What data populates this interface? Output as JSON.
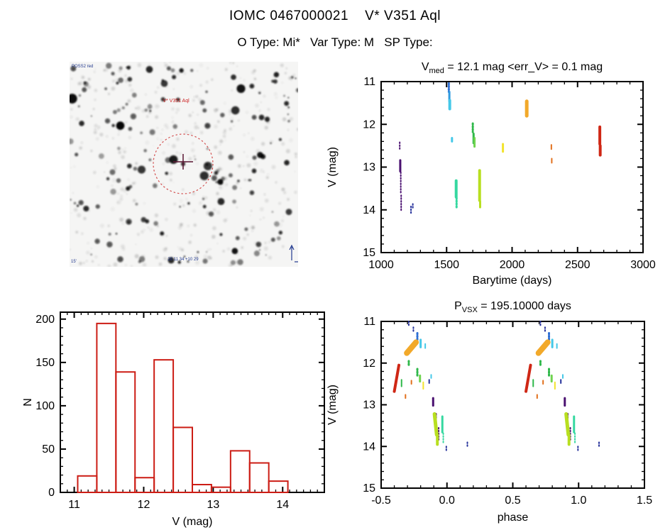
{
  "header": {
    "title": "IOMC 0467000021    V* V351 Aql",
    "subtitle": "O Type: Mi*   Var Type: M   SP Type:"
  },
  "finder": {
    "target_label": "V* V351 Aql",
    "survey_label": "POSS2 red",
    "coords_label": "20 11 34 +10 29",
    "scale_label": "15'"
  },
  "colors": {
    "axis": "#000000",
    "histogram": "#cc1d15",
    "finder_circle": "#cc3333",
    "finder_annotation": "#223a8f"
  },
  "chart_data": [
    {
      "id": "lightcurve",
      "type": "scatter",
      "title": {
        "main": "V",
        "sub": "med",
        "rest": " = 12.1 mag <err_V> = 0.1 mag"
      },
      "xlabel": "Barytime (days)",
      "ylabel": "V (mag)",
      "xlim": [
        1000,
        3000
      ],
      "ylim": [
        11,
        15
      ],
      "y_inverted": true,
      "xticks": [
        1000,
        1500,
        2000,
        2500,
        3000
      ],
      "xtick_labels": [
        "1000",
        "1500",
        "2000",
        "2500",
        "3000"
      ],
      "yticks": [
        11,
        12,
        13,
        14,
        15
      ],
      "ytick_labels": [
        "11",
        "12",
        "13",
        "14",
        "15"
      ],
      "xminor": 100,
      "yminor": 0.2,
      "repeat_offsets": [
        0
      ],
      "segments": [
        [
          1142,
          12.42,
          1142,
          12.58,
          "#4a1070",
          2,
          1
        ],
        [
          1146,
          12.84,
          1146,
          13.1,
          "#4a1070",
          3,
          0
        ],
        [
          1150,
          13.12,
          1150,
          13.62,
          "#4a1070",
          2,
          1
        ],
        [
          1153,
          13.66,
          1153,
          14.04,
          "#4a1070",
          2,
          1
        ],
        [
          1228,
          13.92,
          1228,
          14.08,
          "#24309a",
          2,
          1
        ],
        [
          1242,
          13.86,
          1242,
          13.96,
          "#24309a",
          2,
          1
        ],
        [
          1517,
          11.04,
          1517,
          11.24,
          "#2e6fd4",
          3,
          1
        ],
        [
          1521,
          11.24,
          1521,
          11.46,
          "#2f9ae0",
          3,
          0
        ],
        [
          1524,
          11.44,
          1524,
          11.64,
          "#45c8e8",
          4,
          0
        ],
        [
          1541,
          12.32,
          1541,
          12.4,
          "#45c8e8",
          3,
          0
        ],
        [
          1573,
          13.32,
          1573,
          13.7,
          "#35d8a0",
          4,
          0
        ],
        [
          1576,
          13.72,
          1576,
          13.96,
          "#35d8a0",
          3,
          1
        ],
        [
          1700,
          11.98,
          1700,
          12.18,
          "#2fb84a",
          3,
          1
        ],
        [
          1706,
          12.22,
          1706,
          12.44,
          "#2fb84a",
          3,
          0
        ],
        [
          1713,
          12.32,
          1713,
          12.52,
          "#6fd34f",
          3,
          0
        ],
        [
          1752,
          13.08,
          1752,
          13.78,
          "#b8df20",
          4,
          0
        ],
        [
          1756,
          13.8,
          1756,
          13.94,
          "#b8df20",
          3,
          0
        ],
        [
          1930,
          12.46,
          1930,
          12.64,
          "#f2e32d",
          3,
          0
        ],
        [
          2112,
          11.46,
          2112,
          11.8,
          "#f2a92a",
          5,
          0
        ],
        [
          2300,
          12.48,
          2300,
          12.58,
          "#e2701d",
          2,
          0
        ],
        [
          2303,
          12.8,
          2303,
          12.9,
          "#e2701d",
          2,
          0
        ],
        [
          2670,
          12.06,
          2670,
          12.46,
          "#cf2715",
          4,
          0
        ],
        [
          2673,
          12.5,
          2673,
          12.72,
          "#cf2715",
          4,
          0
        ]
      ]
    },
    {
      "id": "histogram",
      "type": "histogram",
      "title": null,
      "xlabel": "V (mag)",
      "ylabel": "N",
      "xlim": [
        10.8,
        14.6
      ],
      "ylim": [
        0,
        208
      ],
      "y_inverted": false,
      "xticks": [
        11,
        12,
        13,
        14
      ],
      "xtick_labels": [
        "11",
        "12",
        "13",
        "14"
      ],
      "yticks": [
        0,
        50,
        100,
        150,
        200
      ],
      "ytick_labels": [
        "0",
        "50",
        "100",
        "150",
        "200"
      ],
      "xminor": 0.1,
      "yminor": 10,
      "bin_edges": [
        11.05,
        11.325,
        11.6,
        11.875,
        12.15,
        12.425,
        12.7,
        12.975,
        13.25,
        13.525,
        13.8,
        14.075
      ],
      "counts": [
        19,
        195,
        139,
        17,
        153,
        75,
        9,
        6,
        48,
        34,
        13
      ]
    },
    {
      "id": "phase",
      "type": "scatter",
      "title": {
        "main": "P",
        "sub": "VSX",
        "rest": " = 195.10000 days"
      },
      "xlabel": "phase",
      "ylabel": "V (mag)",
      "xlim": [
        -0.5,
        1.5
      ],
      "ylim": [
        11,
        15
      ],
      "y_inverted": true,
      "xticks": [
        -0.5,
        0.0,
        0.5,
        1.0,
        1.5
      ],
      "xtick_labels": [
        "-0.5",
        "0.0",
        "0.5",
        "1.0",
        "1.5"
      ],
      "yticks": [
        11,
        12,
        13,
        14,
        15
      ],
      "ytick_labels": [
        "11",
        "12",
        "13",
        "14",
        "15"
      ],
      "xminor": 0.1,
      "yminor": 0.2,
      "repeat_offsets": [
        0,
        1
      ],
      "segments": [
        [
          -0.29,
          11.0,
          -0.29,
          11.1,
          "#24309a",
          2,
          1
        ],
        [
          -0.255,
          11.14,
          -0.255,
          11.24,
          "#24309a",
          2,
          1
        ],
        [
          -0.225,
          11.28,
          -0.225,
          11.44,
          "#2e6fd4",
          3,
          1
        ],
        [
          -0.2,
          11.44,
          -0.2,
          11.62,
          "#45c8e8",
          3,
          0
        ],
        [
          -0.165,
          11.54,
          -0.165,
          11.64,
          "#45c8e8",
          2,
          0
        ],
        [
          -0.305,
          11.76,
          -0.235,
          11.5,
          "#f2a92a",
          8,
          0
        ],
        [
          -0.4,
          12.68,
          -0.365,
          12.05,
          "#cf2715",
          4,
          0
        ],
        [
          -0.29,
          11.95,
          -0.29,
          12.05,
          "#2fb84a",
          3,
          1
        ],
        [
          -0.345,
          12.4,
          -0.345,
          12.56,
          "#2fb84a",
          2,
          0
        ],
        [
          -0.225,
          12.14,
          -0.225,
          12.32,
          "#2fb84a",
          3,
          1
        ],
        [
          -0.205,
          12.3,
          -0.205,
          12.44,
          "#6fd34f",
          3,
          0
        ],
        [
          -0.12,
          12.28,
          -0.12,
          12.36,
          "#45c8e8",
          2,
          0
        ],
        [
          -0.135,
          12.4,
          -0.135,
          12.48,
          "#24309a",
          2,
          0
        ],
        [
          -0.27,
          12.42,
          -0.27,
          12.5,
          "#e2701d",
          2,
          0
        ],
        [
          -0.18,
          12.46,
          -0.18,
          12.62,
          "#f2e32d",
          2,
          0
        ],
        [
          -0.315,
          12.76,
          -0.315,
          12.84,
          "#e2701d",
          2,
          0
        ],
        [
          -0.105,
          12.84,
          -0.105,
          13.02,
          "#4a1070",
          3,
          0
        ],
        [
          -0.085,
          13.22,
          -0.085,
          13.62,
          "#4a1070",
          3,
          1
        ],
        [
          -0.063,
          13.55,
          -0.063,
          13.88,
          "#4a1070",
          2,
          1
        ],
        [
          -0.095,
          13.22,
          -0.078,
          13.72,
          "#b8df20",
          5,
          0
        ],
        [
          -0.073,
          13.72,
          -0.073,
          13.95,
          "#b8df20",
          4,
          0
        ],
        [
          -0.035,
          13.28,
          -0.035,
          13.66,
          "#35d8a0",
          3,
          0
        ],
        [
          -0.028,
          13.68,
          -0.028,
          13.92,
          "#35d8a0",
          2,
          1
        ],
        [
          -0.005,
          14.0,
          -0.005,
          14.1,
          "#24309a",
          2,
          1
        ],
        [
          0.155,
          13.9,
          0.155,
          14.0,
          "#24309a",
          2,
          1
        ]
      ]
    }
  ]
}
